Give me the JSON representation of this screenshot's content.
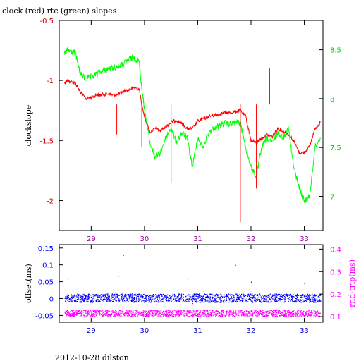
{
  "chart_data": [
    {
      "type": "line",
      "title": "clock (red) rtc (green) slopes",
      "ylabel": "clockslope",
      "x_ticks": [
        "29",
        "30",
        "31",
        "32",
        "33"
      ],
      "xlim": [
        28.4,
        33.35
      ],
      "ylim": [
        -2.25,
        -0.5
      ],
      "y_ticks": [
        "-0.5",
        "-1",
        "-1.5",
        "-2"
      ],
      "y2lim": [
        6.65,
        8.8
      ],
      "y2_ticks": [
        "8.5",
        "8",
        "7.5",
        "7"
      ],
      "colors": {
        "left_axis": "#cc0000",
        "right_axis": "#00cc00",
        "clock": "#ff0000",
        "rtc": "#00ff00",
        "frame": "#000000"
      },
      "series": [
        {
          "name": "clock",
          "axis": "left",
          "x": [
            28.5,
            28.55,
            28.6,
            28.7,
            28.8,
            28.9,
            29.0,
            29.1,
            29.2,
            29.3,
            29.4,
            29.5,
            29.6,
            29.7,
            29.8,
            29.9,
            29.95,
            30.0,
            30.1,
            30.2,
            30.3,
            30.4,
            30.5,
            30.6,
            30.7,
            30.8,
            30.9,
            31.0,
            31.1,
            31.2,
            31.3,
            31.4,
            31.5,
            31.6,
            31.7,
            31.8,
            31.9,
            32.0,
            32.1,
            32.2,
            32.3,
            32.4,
            32.5,
            32.6,
            32.7,
            32.8,
            32.9,
            33.0,
            33.1,
            33.2,
            33.3
          ],
          "y": [
            -1.02,
            -1.0,
            -1.01,
            -1.02,
            -1.1,
            -1.15,
            -1.14,
            -1.12,
            -1.12,
            -1.11,
            -1.12,
            -1.12,
            -1.09,
            -1.08,
            -1.06,
            -1.07,
            -1.2,
            -1.3,
            -1.43,
            -1.4,
            -1.42,
            -1.38,
            -1.35,
            -1.33,
            -1.36,
            -1.4,
            -1.4,
            -1.34,
            -1.32,
            -1.3,
            -1.29,
            -1.28,
            -1.27,
            -1.27,
            -1.26,
            -1.25,
            -1.3,
            -1.5,
            -1.52,
            -1.48,
            -1.45,
            -1.47,
            -1.4,
            -1.42,
            -1.45,
            -1.5,
            -1.6,
            -1.6,
            -1.55,
            -1.4,
            -1.35
          ]
        },
        {
          "name": "rtc",
          "axis": "right",
          "x": [
            28.5,
            28.55,
            28.6,
            28.7,
            28.8,
            28.9,
            29.0,
            29.1,
            29.2,
            29.3,
            29.4,
            29.5,
            29.6,
            29.7,
            29.8,
            29.9,
            29.95,
            30.0,
            30.1,
            30.2,
            30.3,
            30.4,
            30.5,
            30.6,
            30.7,
            30.8,
            30.9,
            31.0,
            31.1,
            31.2,
            31.3,
            31.4,
            31.5,
            31.6,
            31.7,
            31.8,
            31.9,
            32.0,
            32.1,
            32.2,
            32.3,
            32.4,
            32.5,
            32.6,
            32.7,
            32.8,
            32.9,
            33.0,
            33.1,
            33.2,
            33.3
          ],
          "y": [
            8.45,
            8.5,
            8.48,
            8.47,
            8.25,
            8.2,
            8.22,
            8.25,
            8.28,
            8.3,
            8.32,
            8.33,
            8.35,
            8.4,
            8.42,
            8.38,
            8.1,
            7.9,
            7.55,
            7.4,
            7.45,
            7.6,
            7.7,
            7.55,
            7.65,
            7.6,
            7.3,
            7.6,
            7.5,
            7.65,
            7.7,
            7.72,
            7.75,
            7.74,
            7.76,
            7.75,
            7.5,
            7.3,
            7.2,
            7.5,
            7.6,
            7.55,
            7.65,
            7.6,
            7.7,
            7.3,
            7.1,
            6.95,
            7.0,
            7.5,
            7.6
          ]
        }
      ]
    },
    {
      "type": "scatter",
      "ylabel": "offset(ms)",
      "y2label": "rnd-trip(ms)",
      "x_ticks": [
        "29",
        "30",
        "31",
        "32",
        "33"
      ],
      "xlim": [
        28.4,
        33.35
      ],
      "ylim": [
        -0.07,
        0.16
      ],
      "y_ticks": [
        "0.15",
        "0.1",
        "0.05",
        "0",
        "-0.05"
      ],
      "y2lim": [
        0.075,
        0.42
      ],
      "y2_ticks": [
        "0.4",
        "0.3",
        "0.2",
        "0.1"
      ],
      "colors": {
        "offset": "#0000ff",
        "rnd_trip": "#ff00ff",
        "frame": "#000000"
      },
      "series": [
        {
          "name": "offset",
          "axis": "left",
          "x_range": [
            28.5,
            33.3
          ],
          "y_band": [
            -0.01,
            0.015
          ],
          "y_outliers": [
            [
              28.55,
              0.06
            ],
            [
              29.6,
              0.13
            ],
            [
              30.8,
              0.06
            ],
            [
              31.7,
              0.1
            ],
            [
              32.0,
              0.05
            ],
            [
              33.0,
              0.045
            ]
          ]
        },
        {
          "name": "rnd_trip",
          "axis": "right",
          "x_range": [
            28.5,
            33.3
          ],
          "y_band": [
            0.103,
            0.13
          ],
          "y_outliers": [
            [
              29.5,
              0.28
            ],
            [
              30.9,
              0.16
            ],
            [
              32.4,
              0.18
            ]
          ]
        }
      ]
    }
  ],
  "footer": "2012-10-28 dilston"
}
